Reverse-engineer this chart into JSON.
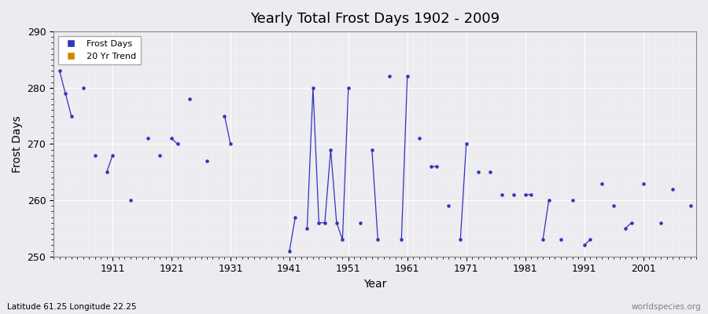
{
  "title": "Yearly Total Frost Days 1902 - 2009",
  "xlabel": "Year",
  "ylabel": "Frost Days",
  "lat_lon_label": "Latitude 61.25 Longitude 22.25",
  "watermark": "worldspecies.org",
  "xlim": [
    1901,
    2010
  ],
  "ylim": [
    250,
    290
  ],
  "yticks": [
    250,
    260,
    270,
    280,
    290
  ],
  "xticks": [
    1911,
    1921,
    1931,
    1941,
    1951,
    1961,
    1971,
    1981,
    1991,
    2001
  ],
  "line_color": "#3333bb",
  "scatter_color": "#3333bb",
  "bg_color": "#ebebf0",
  "plot_bg_color": "#ebebf0",
  "legend_frost_color": "#3333bb",
  "legend_trend_color": "#cc8800",
  "grid_major_color": "#ffffff",
  "grid_minor_color": "#ffffff",
  "years": [
    1902,
    1903,
    1904,
    1906,
    1908,
    1910,
    1911,
    1914,
    1917,
    1919,
    1921,
    1922,
    1924,
    1927,
    1930,
    1931,
    1941,
    1942,
    1944,
    1945,
    1946,
    1947,
    1948,
    1949,
    1950,
    1951,
    1953,
    1955,
    1956,
    1958,
    1960,
    1961,
    1963,
    1965,
    1966,
    1968,
    1970,
    1971,
    1973,
    1975,
    1977,
    1979,
    1981,
    1982,
    1984,
    1985,
    1987,
    1989,
    1991,
    1992,
    1994,
    1996,
    1998,
    1999,
    2001,
    2004,
    2006,
    2009
  ],
  "values": [
    283,
    279,
    275,
    280,
    268,
    265,
    268,
    260,
    271,
    268,
    271,
    270,
    278,
    267,
    275,
    270,
    251,
    257,
    255,
    280,
    256,
    256,
    269,
    256,
    253,
    280,
    256,
    269,
    253,
    282,
    253,
    282,
    271,
    266,
    266,
    259,
    253,
    270,
    265,
    265,
    261,
    261,
    261,
    261,
    253,
    260,
    253,
    260,
    252,
    253,
    263,
    259,
    255,
    256,
    263,
    256,
    262,
    259
  ]
}
